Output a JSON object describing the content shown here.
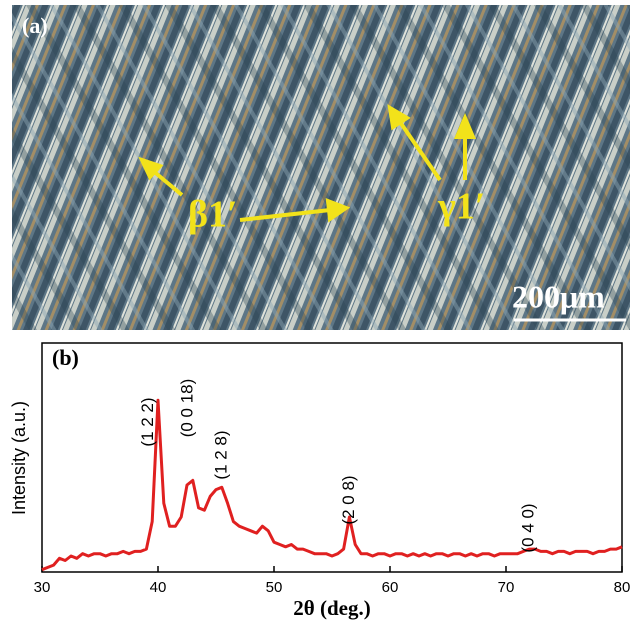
{
  "micrograph": {
    "panel_label": "(a)",
    "annotations": [
      "β1′",
      "γ1′"
    ],
    "scale_bar": "200μm"
  },
  "chart_data": {
    "type": "line",
    "panel_label": "(b)",
    "x_label": "2θ (deg.)",
    "y_label": "Intensity (a.u.)",
    "xlim": [
      30,
      80
    ],
    "xticks": [
      30,
      40,
      50,
      60,
      70,
      80
    ],
    "ylim": [
      0,
      100
    ],
    "x": [
      30,
      30.5,
      31,
      31.5,
      32,
      32.5,
      33,
      33.5,
      34,
      34.5,
      35,
      35.5,
      36,
      36.5,
      37,
      37.5,
      38,
      38.5,
      39,
      39.5,
      40,
      40.5,
      41,
      41.5,
      42,
      42.5,
      43,
      43.5,
      44,
      44.5,
      45,
      45.5,
      46,
      46.5,
      47,
      47.5,
      48,
      48.5,
      49,
      49.5,
      50,
      50.5,
      51,
      51.5,
      52,
      52.5,
      53,
      53.5,
      54,
      54.5,
      55,
      55.5,
      56,
      56.5,
      57,
      57.5,
      58,
      58.5,
      59,
      59.5,
      60,
      60.5,
      61,
      61.5,
      62,
      62.5,
      63,
      63.5,
      64,
      64.5,
      65,
      65.5,
      66,
      66.5,
      67,
      67.5,
      68,
      68.5,
      69,
      69.5,
      70,
      70.5,
      71,
      71.5,
      72,
      72.5,
      73,
      73.5,
      74,
      74.5,
      75,
      75.5,
      76,
      76.5,
      77,
      77.5,
      78,
      78.5,
      79,
      79.5,
      80
    ],
    "series": [
      {
        "color": "#e02020",
        "values": [
          1,
          2,
          3,
          6,
          5,
          7,
          6,
          8,
          7,
          8,
          8,
          7,
          8,
          8,
          9,
          8,
          9,
          9,
          10,
          22,
          75,
          30,
          20,
          20,
          24,
          38,
          40,
          28,
          27,
          33,
          36,
          37,
          30,
          22,
          20,
          19,
          18,
          17,
          20,
          18,
          13,
          12,
          11,
          12,
          10,
          10,
          9,
          8,
          8,
          8,
          7,
          8,
          10,
          24,
          12,
          8,
          8,
          7,
          8,
          8,
          7,
          8,
          8,
          7,
          8,
          7,
          8,
          7,
          8,
          8,
          7,
          8,
          8,
          7,
          8,
          7,
          8,
          8,
          7,
          8,
          8,
          8,
          8,
          9,
          10,
          10,
          9,
          9,
          8,
          9,
          9,
          8,
          9,
          9,
          9,
          8,
          9,
          9,
          10,
          10,
          11
        ]
      }
    ],
    "annotations": [
      {
        "text": "(1 2 2)",
        "x": 39.2
      },
      {
        "text": "(0 0 18)",
        "x": 42.6
      },
      {
        "text": "(1 2 8)",
        "x": 45.5
      },
      {
        "text": "(2 0 8)",
        "x": 56.5
      },
      {
        "text": "(0 4 0)",
        "x": 72
      }
    ]
  }
}
